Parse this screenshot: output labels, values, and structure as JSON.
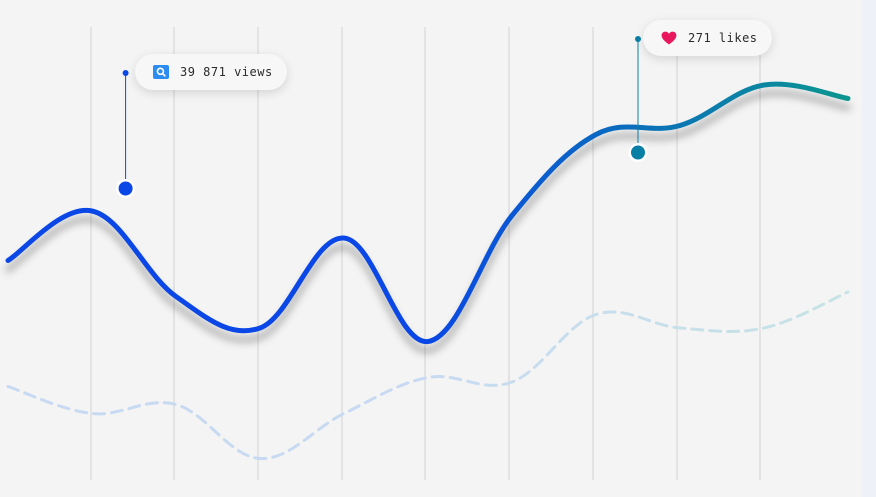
{
  "colors": {
    "background": "#f4f4f4",
    "grid": "#d2d2d2",
    "line_start": "#0a47e6",
    "line_end": "#0b9690",
    "dashed": "#c8d9f2",
    "dashed_end": "#c6e3e5",
    "views_icon": "#2d8cf0",
    "likes_icon": "#e8175d"
  },
  "callouts": {
    "views": {
      "text": "39 871 views",
      "icon": "search-icon"
    },
    "likes": {
      "text": "271 likes",
      "icon": "heart-icon"
    }
  },
  "chart_data": {
    "type": "line",
    "grid": "vertical",
    "x": [
      0,
      1,
      2,
      3,
      4,
      5,
      6,
      7,
      8,
      9,
      10
    ],
    "series": [
      {
        "style": "solid",
        "values": [
          51,
          62,
          43,
          36,
          56,
          33,
          61,
          79,
          81,
          90,
          87
        ]
      },
      {
        "style": "dashed",
        "values": [
          23,
          17,
          19,
          7,
          17,
          25,
          24,
          39,
          36,
          36,
          44
        ]
      }
    ],
    "ylim": [
      0,
      100
    ],
    "annotations": [
      {
        "x": 1.4,
        "y": 67,
        "label": "39 871 views"
      },
      {
        "x": 7.5,
        "y": 75,
        "label": "271 likes"
      }
    ]
  }
}
